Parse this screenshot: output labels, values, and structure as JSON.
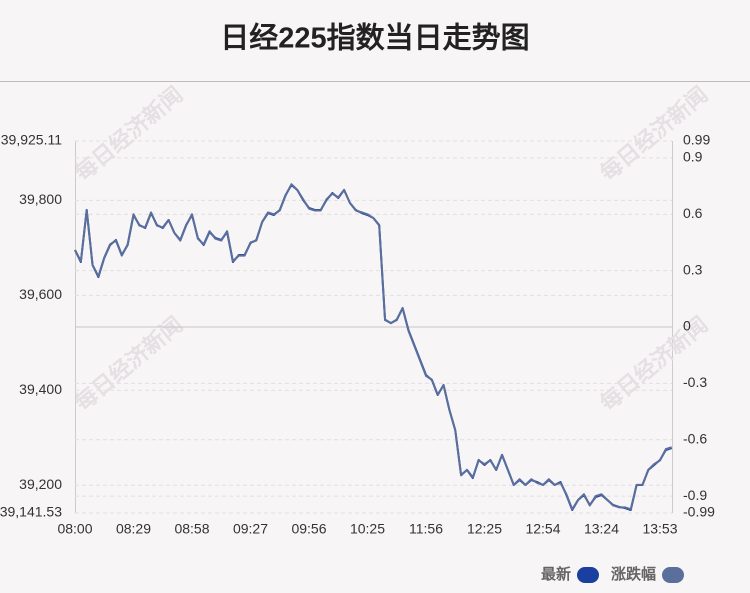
{
  "chart_data": {
    "type": "line",
    "title": "日经225指数当日走势图",
    "watermark": "每日经济新闻",
    "categories": [
      "08:00",
      null,
      null,
      null,
      null,
      null,
      null,
      null,
      null,
      null,
      "08:29",
      null,
      null,
      null,
      null,
      null,
      null,
      null,
      null,
      null,
      "08:58",
      null,
      null,
      null,
      null,
      null,
      null,
      null,
      null,
      null,
      "09:27",
      null,
      null,
      null,
      null,
      null,
      null,
      null,
      null,
      null,
      "09:56",
      null,
      null,
      null,
      null,
      null,
      null,
      null,
      null,
      null,
      "10:25",
      null,
      null,
      null,
      null,
      null,
      null,
      null,
      null,
      null,
      "11:56",
      null,
      null,
      null,
      null,
      null,
      null,
      null,
      null,
      null,
      "12:25",
      null,
      null,
      null,
      null,
      null,
      null,
      null,
      null,
      null,
      "12:54",
      null,
      null,
      null,
      null,
      null,
      null,
      null,
      null,
      null,
      "13:24",
      null,
      null,
      null,
      null,
      null,
      null,
      null,
      null,
      null,
      "13:53",
      null,
      null
    ],
    "series": [
      {
        "name": "最新",
        "color": "#1a3fa0",
        "values": [
          39695.5,
          39670.2,
          39779.8,
          39663.9,
          39638.6,
          39678.7,
          39706.0,
          39716.6,
          39685.0,
          39706.0,
          39769.2,
          39748.2,
          39741.8,
          39773.4,
          39748.2,
          39741.8,
          39758.7,
          39731.3,
          39716.6,
          39748.2,
          39769.2,
          39720.8,
          39706.0,
          39733.4,
          39720.8,
          39716.6,
          39733.4,
          39670.2,
          39685.0,
          39685.0,
          39710.2,
          39716.6,
          39754.5,
          39773.4,
          39769.2,
          39779.8,
          39811.4,
          39832.4,
          39821.9,
          39800.8,
          39784.0,
          39779.8,
          39779.8,
          39800.8,
          39815.6,
          39805.0,
          39821.9,
          39794.5,
          39779.8,
          39773.4,
          39769.2,
          39762.9,
          39748.2,
          39548.1,
          39541.7,
          39548.1,
          39573.3,
          39527.0,
          39495.4,
          39463.8,
          39432.2,
          39421.7,
          39390.1,
          39411.1,
          39358.5,
          39316.4,
          39221.6,
          39232.1,
          39215.2,
          39253.2,
          39242.6,
          39253.2,
          39232.1,
          39263.7,
          39232.1,
          39200.5,
          39211.0,
          39200.5,
          39211.0,
          39206.8,
          39200.5,
          39211.0,
          39200.5,
          39206.8,
          39179.4,
          39147.8,
          39168.9,
          39179.4,
          39158.4,
          39175.2,
          39179.4,
          39168.9,
          39158.4,
          39154.2,
          39152.0,
          39147.8,
          39200.5,
          39200.5,
          39232.1,
          39242.6,
          39253.2,
          39274.2,
          39278.4
        ]
      },
      {
        "name": "涨跌幅",
        "color": "#5b6f9c",
        "axis": "y2",
        "values": [
          0.41,
          0.35,
          0.62,
          0.33,
          0.27,
          0.37,
          0.44,
          0.46,
          0.38,
          0.44,
          0.6,
          0.54,
          0.53,
          0.61,
          0.54,
          0.53,
          0.57,
          0.5,
          0.46,
          0.54,
          0.6,
          0.47,
          0.44,
          0.51,
          0.47,
          0.46,
          0.51,
          0.35,
          0.38,
          0.38,
          0.45,
          0.46,
          0.56,
          0.61,
          0.6,
          0.62,
          0.7,
          0.76,
          0.73,
          0.68,
          0.63,
          0.62,
          0.62,
          0.68,
          0.71,
          0.69,
          0.73,
          0.66,
          0.62,
          0.61,
          0.6,
          0.58,
          0.54,
          0.04,
          0.02,
          0.04,
          0.1,
          -0.02,
          -0.1,
          -0.18,
          -0.26,
          -0.28,
          -0.36,
          -0.31,
          -0.44,
          -0.55,
          -0.79,
          -0.76,
          -0.8,
          -0.71,
          -0.73,
          -0.71,
          -0.76,
          -0.68,
          -0.76,
          -0.84,
          -0.81,
          -0.84,
          -0.81,
          -0.83,
          -0.84,
          -0.81,
          -0.84,
          -0.83,
          -0.89,
          -0.97,
          -0.92,
          -0.89,
          -0.95,
          -0.9,
          -0.89,
          -0.92,
          -0.95,
          -0.96,
          -0.96,
          -0.97,
          -0.84,
          -0.84,
          -0.76,
          -0.73,
          -0.71,
          -0.65,
          -0.64
        ]
      }
    ],
    "ylim": [
      39141.53,
      39925.11
    ],
    "yticks": [
      {
        "value": 39141.53,
        "label": "39,141.53"
      },
      {
        "value": 39200,
        "label": "39,200"
      },
      {
        "value": 39400,
        "label": "39,400"
      },
      {
        "value": 39600,
        "label": "39,600"
      },
      {
        "value": 39800,
        "label": "39,800"
      },
      {
        "value": 39925.11,
        "label": "39,925.11"
      }
    ],
    "y2lim": [
      -0.99,
      0.99
    ],
    "y2ticks": [
      -0.99,
      -0.9,
      -0.6,
      -0.3,
      0,
      0.3,
      0.6,
      0.9,
      0.99
    ],
    "grid": true,
    "legend": "bottom-right"
  }
}
